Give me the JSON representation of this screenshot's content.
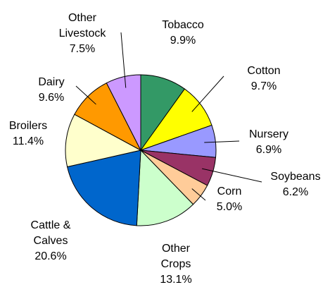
{
  "chart_data": {
    "type": "pie",
    "categories": [
      "Tobacco",
      "Cotton",
      "Nursery",
      "Soybeans",
      "Corn",
      "Other Crops",
      "Cattle & Calves",
      "Broilers",
      "Dairy",
      "Other Livestock"
    ],
    "values": [
      9.9,
      9.7,
      6.9,
      6.2,
      5.0,
      13.1,
      20.6,
      11.4,
      9.6,
      7.5
    ],
    "value_labels": [
      "9.9%",
      "9.7%",
      "6.9%",
      "6.2%",
      "5.0%",
      "13.1%",
      "20.6%",
      "11.4%",
      "9.6%",
      "7.5%"
    ],
    "colors": [
      "#339966",
      "#ffff00",
      "#9999ff",
      "#993366",
      "#ffcc99",
      "#ccffcc",
      "#0066cc",
      "#ffffcc",
      "#ff9900",
      "#cc99ff"
    ]
  }
}
